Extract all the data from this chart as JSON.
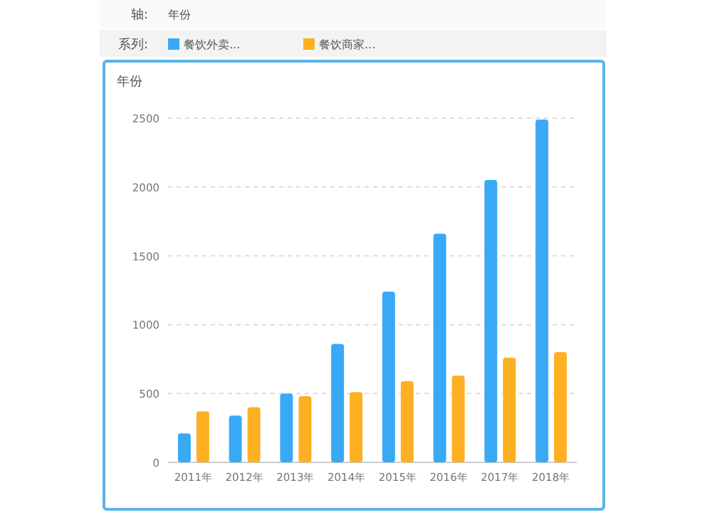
{
  "chart_data": {
    "type": "bar",
    "title": "年份",
    "annotations": [
      "轴:",
      "年份",
      "系列:"
    ],
    "categories": [
      "2011年",
      "2012年",
      "2013年",
      "2014年",
      "2015年",
      "2016年",
      "2017年",
      "2018年"
    ],
    "series": [
      {
        "name": "餐饮外卖...",
        "color": "#3aa9f5",
        "values": [
          210,
          340,
          500,
          860,
          1240,
          1660,
          2050,
          2490
        ]
      },
      {
        "name": "餐饮商家...",
        "color": "#fdb022",
        "values": [
          370,
          400,
          480,
          510,
          590,
          630,
          760,
          800
        ]
      }
    ],
    "ylim": [
      0,
      2500
    ],
    "yticks": [
      0,
      500,
      1000,
      1500,
      2000,
      2500
    ],
    "grid": "y",
    "legend": "top"
  }
}
